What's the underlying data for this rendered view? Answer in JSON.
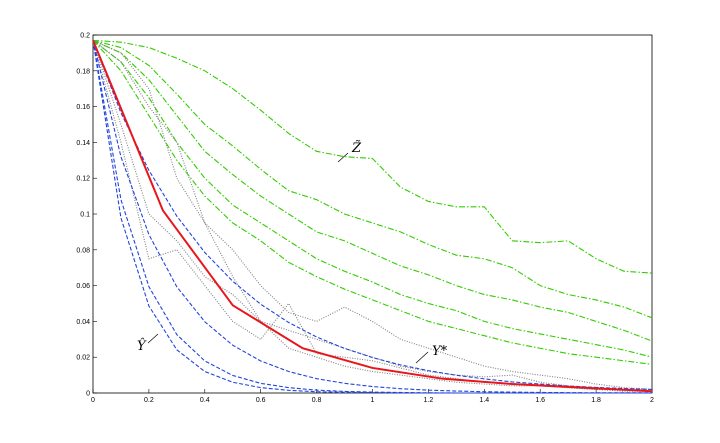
{
  "chart_data": {
    "type": "line",
    "annotations": [
      "Z̃",
      "Y*",
      "Ŷ"
    ],
    "x": [
      0,
      0.1,
      0.2,
      0.3,
      0.4,
      0.5,
      0.6,
      0.7,
      0.8,
      0.9,
      1,
      1.1,
      1.2,
      1.3,
      1.4,
      1.5,
      1.6,
      1.7,
      1.8,
      1.9,
      2
    ],
    "xlim": [
      0,
      2
    ],
    "xticks": [
      0,
      0.2,
      0.4,
      0.6,
      0.8,
      1,
      1.2,
      1.4,
      1.6,
      1.8,
      2
    ],
    "ylim": [
      0,
      0.2
    ],
    "yticks": [
      0,
      0.02,
      0.04,
      0.06,
      0.08,
      0.1,
      0.12,
      0.14,
      0.16,
      0.18,
      0.2
    ],
    "series": [
      {
        "color": "#33cc00",
        "style": "dashdot",
        "values": [
          0.197,
          0.196,
          0.193,
          0.187,
          0.18,
          0.17,
          0.158,
          0.145,
          0.135,
          0.132,
          0.131,
          0.115,
          0.107,
          0.104,
          0.104,
          0.085,
          0.084,
          0.085,
          0.075,
          0.068,
          0.067
        ]
      },
      {
        "color": "#33cc00",
        "style": "dashdot",
        "values": [
          0.197,
          0.193,
          0.183,
          0.167,
          0.15,
          0.138,
          0.125,
          0.113,
          0.108,
          0.1,
          0.095,
          0.09,
          0.083,
          0.077,
          0.075,
          0.07,
          0.06,
          0.055,
          0.052,
          0.048,
          0.042
        ]
      },
      {
        "color": "#33cc00",
        "style": "dashdot",
        "values": [
          0.197,
          0.19,
          0.175,
          0.155,
          0.135,
          0.122,
          0.11,
          0.1,
          0.09,
          0.085,
          0.078,
          0.071,
          0.066,
          0.06,
          0.055,
          0.052,
          0.048,
          0.045,
          0.04,
          0.035,
          0.029
        ]
      },
      {
        "color": "#33cc00",
        "style": "dashdot",
        "values": [
          0.197,
          0.185,
          0.165,
          0.14,
          0.12,
          0.105,
          0.095,
          0.085,
          0.075,
          0.068,
          0.062,
          0.055,
          0.05,
          0.046,
          0.04,
          0.036,
          0.033,
          0.03,
          0.027,
          0.024,
          0.02
        ]
      },
      {
        "color": "#33cc00",
        "style": "dashdot",
        "values": [
          0.197,
          0.18,
          0.155,
          0.13,
          0.11,
          0.095,
          0.085,
          0.073,
          0.065,
          0.058,
          0.052,
          0.046,
          0.04,
          0.036,
          0.032,
          0.028,
          0.025,
          0.022,
          0.02,
          0.018,
          0.016
        ]
      },
      {
        "color": "#808080",
        "style": "dotted",
        "values": [
          0.197,
          0.19,
          0.17,
          0.12,
          0.095,
          0.08,
          0.06,
          0.045,
          0.04,
          0.048,
          0.04,
          0.03,
          0.025,
          0.02,
          0.015,
          0.012,
          0.01,
          0.008,
          0.005,
          0.003,
          0.002
        ]
      },
      {
        "color": "#808080",
        "style": "dotted",
        "values": [
          0.197,
          0.15,
          0.1,
          0.085,
          0.065,
          0.055,
          0.04,
          0.035,
          0.03,
          0.025,
          0.02,
          0.015,
          0.012,
          0.01,
          0.009,
          0.01,
          0.006,
          0.004,
          0.003,
          0.002,
          0.002
        ]
      },
      {
        "color": "#808080",
        "style": "dotted",
        "values": [
          0.197,
          0.14,
          0.075,
          0.08,
          0.06,
          0.04,
          0.03,
          0.05,
          0.022,
          0.02,
          0.018,
          0.014,
          0.01,
          0.008,
          0.006,
          0.005,
          0.004,
          0.003,
          0.002,
          0.001,
          0.001
        ]
      },
      {
        "color": "#808080",
        "style": "dotted",
        "values": [
          0.197,
          0.185,
          0.16,
          0.14,
          0.095,
          0.065,
          0.04,
          0.025,
          0.02,
          0.015,
          0.012,
          0.01,
          0.008,
          0.006,
          0.005,
          0.004,
          0.004,
          0.003,
          0.002,
          0.002,
          0.001
        ]
      },
      {
        "color": "#2244dd",
        "style": "dashed",
        "values": [
          0.197,
          0.1565,
          0.1244,
          0.0988,
          0.0785,
          0.0624,
          0.0496,
          0.0394,
          0.0313,
          0.0249,
          0.0198,
          0.0157,
          0.0125,
          0.0099,
          0.0079,
          0.0062,
          0.005,
          0.0039,
          0.0031,
          0.0025,
          0.002
        ]
      },
      {
        "color": "#2244dd",
        "style": "dashed",
        "values": [
          0.197,
          0.132,
          0.0885,
          0.0593,
          0.0398,
          0.0267,
          0.0179,
          0.012,
          0.008,
          0.0054,
          0.0036,
          0.0024,
          0.0016,
          0.0011,
          0.0007,
          0.0005,
          0.0003,
          0.0002,
          0.0001,
          0.0001,
          0.0001
        ]
      },
      {
        "color": "#2244dd",
        "style": "dashed",
        "values": [
          0.197,
          0.108,
          0.0594,
          0.0326,
          0.0179,
          0.0098,
          0.0054,
          0.003,
          0.0016,
          0.0009,
          0.0005,
          0.0003,
          0.0001,
          0,
          0,
          0,
          0,
          0,
          0,
          0,
          0
        ]
      },
      {
        "color": "#2244dd",
        "style": "dashed",
        "values": [
          0.197,
          0.0978,
          0.0486,
          0.0241,
          0.012,
          0.006,
          0.003,
          0.0015,
          0.0007,
          0.0004,
          0.0002,
          0,
          0,
          0,
          0,
          0,
          0,
          0,
          0,
          0,
          0
        ]
      },
      {
        "color": "#e8161b",
        "style": "solid",
        "x": [
          0,
          0.25,
          0.5,
          0.75,
          1,
          1.25,
          1.5,
          1.75,
          2
        ],
        "values": [
          0.197,
          0.102,
          0.049,
          0.025,
          0.014,
          0.008,
          0.005,
          0.003,
          0.001
        ]
      }
    ]
  }
}
